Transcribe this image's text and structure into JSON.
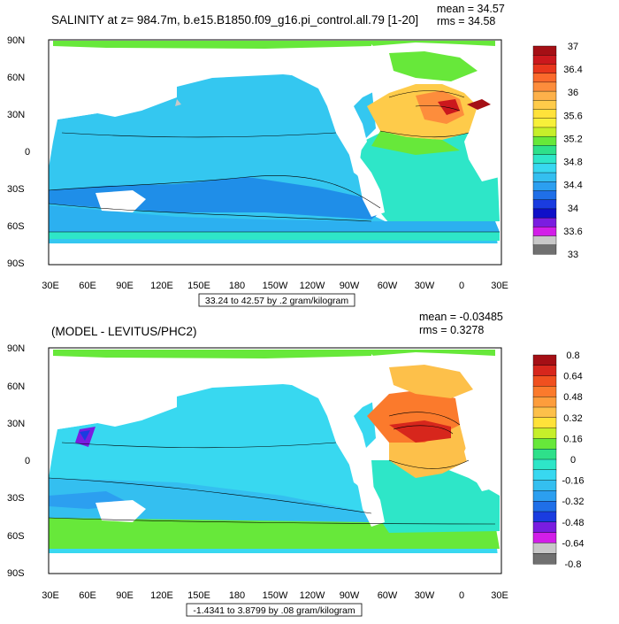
{
  "panels": [
    {
      "title": "SALINITY at z= 984.7m, b.e15.B1850.f09_g16.pi_control.all.79 [1-20]",
      "mean_text": "mean = 34.57",
      "rms_text": "rms = 34.58",
      "info_text": "33.24 to 42.57 by .2 gram/kilogram",
      "colorbar": {
        "labels": [
          "37",
          "36.4",
          "36",
          "35.6",
          "35.2",
          "34.8",
          "34.4",
          "34",
          "33.6",
          "33"
        ],
        "colors": [
          "#a50f15",
          "#cb181d",
          "#e8361c",
          "#fb6a2c",
          "#fd8d3c",
          "#fdb14a",
          "#fecb4a",
          "#ffe23a",
          "#f7f03a",
          "#c6ef2a",
          "#67e83a",
          "#2ee08a",
          "#2ee6c8",
          "#38d8f0",
          "#34bff0",
          "#2c9ff0",
          "#1f6fe8",
          "#1a3ce0",
          "#1010c8",
          "#7a1de0",
          "#d21ee8",
          "#c8c8c8",
          "#707070"
        ]
      },
      "fill_colors": {
        "ocean_main": "#34c7f0",
        "ocean_band": "#1f8ee8",
        "ocean_warm": "#fdb14a",
        "arctic": "#67e83a"
      }
    },
    {
      "title": "(MODEL - LEVITUS/PHC2)",
      "mean_text": "mean = -0.03485",
      "rms_text": "rms = 0.3278",
      "info_text": "-1.4341 to 3.8799 by .08 gram/kilogram",
      "colorbar": {
        "labels": [
          "0.8",
          "0.64",
          "0.48",
          "0.32",
          "0.16",
          "0",
          "-0.16",
          "-0.32",
          "-0.48",
          "-0.64",
          "-0.8"
        ],
        "colors": [
          "#a50f15",
          "#d7261c",
          "#f0501f",
          "#fb7a2c",
          "#fd9d3c",
          "#fdc04a",
          "#ffe23a",
          "#c6ef2a",
          "#67e83a",
          "#2ee08a",
          "#2ee6c8",
          "#38d8f0",
          "#34bff0",
          "#2c9ff0",
          "#1f6fe8",
          "#1a3ce0",
          "#7a1de0",
          "#d21ee8",
          "#c8c8c8",
          "#707070"
        ]
      },
      "fill_colors": {
        "ocean_main": "#34c7f0",
        "ocean_band": "#2cb0f0",
        "ocean_warm": "#fb7a2c",
        "arctic": "#67e83a"
      }
    }
  ],
  "axes": {
    "lat_labels": [
      "90N",
      "60N",
      "30N",
      "0",
      "30S",
      "60S",
      "90S"
    ],
    "lon_labels": [
      "30E",
      "60E",
      "90E",
      "120E",
      "150E",
      "180",
      "150W",
      "120W",
      "90W",
      "60W",
      "30W",
      "0",
      "30E"
    ]
  }
}
